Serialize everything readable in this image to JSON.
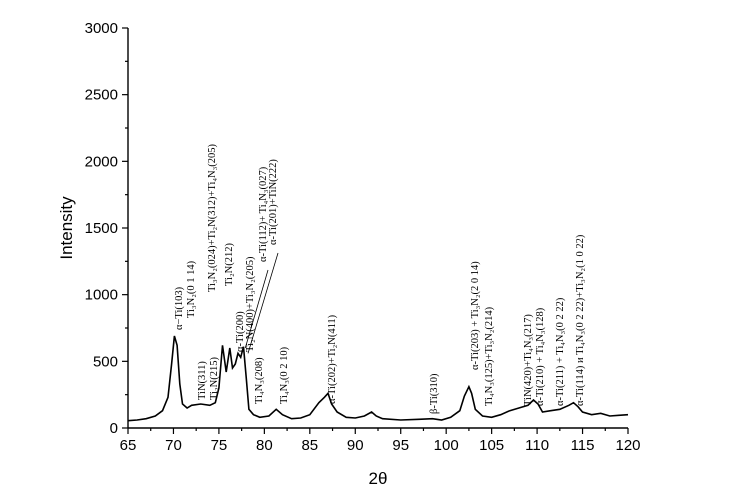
{
  "chart_data": {
    "type": "line",
    "xlabel": "2θ",
    "ylabel": "Intensity",
    "xlim": [
      65,
      120
    ],
    "ylim": [
      0,
      3000
    ],
    "xticks": [
      65,
      70,
      75,
      80,
      85,
      90,
      95,
      100,
      105,
      110,
      115,
      120
    ],
    "yticks": [
      0,
      500,
      1000,
      1500,
      2000,
      2500,
      3000
    ],
    "grid": false,
    "series": [
      {
        "x": [
          65,
          66,
          67,
          68,
          68.8,
          69.4,
          69.8,
          70.1,
          70.4,
          70.7,
          71.0,
          71.5,
          72,
          73,
          74,
          74.6,
          75.0,
          75.4,
          75.8,
          76.2,
          76.5,
          76.8,
          77.1,
          77.4,
          77.7,
          78.0,
          78.3,
          78.8,
          79.5,
          80.5,
          81.3,
          82.0,
          83,
          84,
          85,
          86,
          86.6,
          87.0,
          87.4,
          88,
          89,
          90,
          91,
          91.8,
          92.3,
          93,
          95,
          97,
          98.5,
          99.5,
          100.5,
          101.5,
          102.0,
          102.5,
          102.8,
          103.2,
          104,
          105,
          106,
          107,
          108,
          109,
          109.6,
          110.1,
          110.6,
          111.5,
          112.5,
          113.5,
          114.0,
          114.5,
          115,
          116,
          117,
          118,
          119,
          120
        ],
        "y": [
          55,
          60,
          70,
          90,
          130,
          230,
          480,
          690,
          620,
          330,
          180,
          150,
          170,
          180,
          170,
          190,
          300,
          620,
          420,
          600,
          450,
          480,
          560,
          530,
          610,
          380,
          140,
          100,
          80,
          90,
          140,
          100,
          70,
          75,
          100,
          190,
          230,
          260,
          180,
          120,
          80,
          75,
          90,
          120,
          90,
          70,
          60,
          65,
          70,
          60,
          80,
          130,
          240,
          310,
          260,
          140,
          90,
          80,
          100,
          130,
          150,
          170,
          210,
          180,
          120,
          130,
          140,
          170,
          190,
          160,
          120,
          100,
          110,
          90,
          95,
          100
        ]
      }
    ],
    "annotations": [
      {
        "x": 70.5,
        "text": "α−Ti(103)"
      },
      {
        "x": 71.5,
        "text": "Ti₃N₂(0 1 14)"
      },
      {
        "x": 73.5,
        "text": "Ti₃N₂(024)+Ti₂N(312)+Ti₄N₃(205)"
      },
      {
        "x": 74.7,
        "text": "Ti₂N(212)"
      },
      {
        "x": 76.4,
        "text": "α-Ti(200)"
      },
      {
        "x": 77.2,
        "text": "Ti₂N(400)+Ti₃N₂(205)"
      },
      {
        "x": 78.0,
        "text": "α-Ti(112)+ Ti₄N₃(027)"
      },
      {
        "x": 79.0,
        "text": "α-Ti(201)+TiN(222)"
      },
      {
        "x": 72.3,
        "text": "TiN(311)"
      },
      {
        "x": 74.5,
        "text": "Ti₂N(215)"
      },
      {
        "x": 79.3,
        "text": "Ti₄N₃(208)"
      },
      {
        "x": 82.3,
        "text": "Ti₄N₃(0 2 10)"
      },
      {
        "x": 87.5,
        "text": "α-Ti(202)+Ti₂N(411)"
      },
      {
        "x": 98.7,
        "text": "β-Ti(310)"
      },
      {
        "x": 103.5,
        "text": "α-Ti(203) + Ti₃N₂(2 0 14)"
      },
      {
        "x": 106.4,
        "text": "Ti₄N₃(125)+Ti₃N₂(214)"
      },
      {
        "x": 109.3,
        "text": "TiN(420)+Ti₄N₃(217)"
      },
      {
        "x": 110.8,
        "text": "α-Ti(210) + Ti₄N₃(128)"
      },
      {
        "x": 113.0,
        "text": "α-Ti(211) + Ti₄N₃(0 2 22)"
      },
      {
        "x": 114.9,
        "text": "α-Ti(114) и Ti₄N₃(0 2 22)+Ti₃N₂(1 0 22)"
      }
    ]
  }
}
